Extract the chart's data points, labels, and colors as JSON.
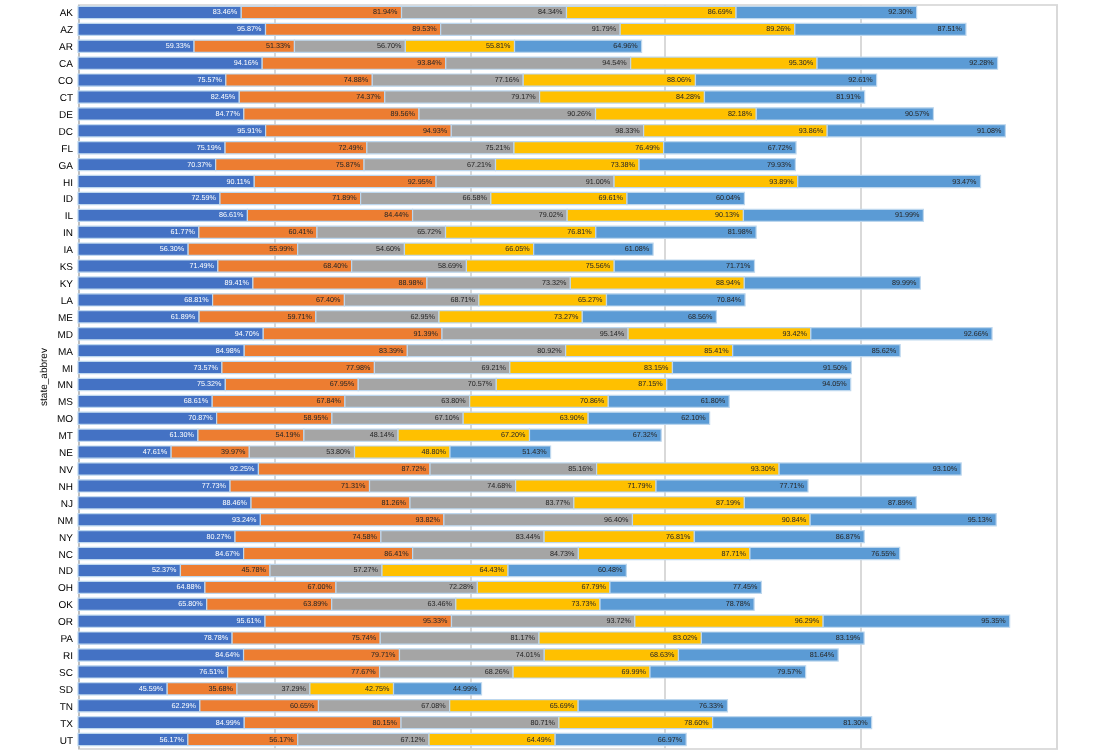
{
  "chart_data": {
    "type": "bar",
    "orientation": "horizontal",
    "stacked": true,
    "ylabel": "state_abbrev",
    "categories": [
      "AK",
      "AZ",
      "AR",
      "CA",
      "CO",
      "CT",
      "DE",
      "DC",
      "FL",
      "GA",
      "HI",
      "ID",
      "IL",
      "IN",
      "IA",
      "KS",
      "KY",
      "LA",
      "ME",
      "MD",
      "MA",
      "MI",
      "MN",
      "MS",
      "MO",
      "MT",
      "NE",
      "NV",
      "NH",
      "NJ",
      "NM",
      "NY",
      "NC",
      "ND",
      "OH",
      "OK",
      "OR",
      "PA",
      "RI",
      "SC",
      "SD",
      "TN",
      "TX",
      "UT"
    ],
    "series": [
      {
        "color": "#4472c4",
        "values": [
          83.46,
          95.87,
          59.33,
          94.16,
          75.57,
          82.45,
          84.77,
          95.91,
          75.19,
          70.37,
          90.11,
          72.59,
          86.61,
          61.77,
          56.3,
          71.49,
          89.41,
          68.81,
          61.89,
          94.7,
          84.98,
          73.57,
          75.32,
          68.61,
          70.87,
          61.3,
          47.61,
          92.25,
          77.73,
          88.46,
          93.24,
          80.27,
          84.67,
          52.37,
          64.88,
          65.8,
          95.61,
          78.78,
          84.64,
          76.51,
          45.59,
          62.29,
          84.99,
          56.17
        ],
        "value_labels": [
          "83.46%",
          "95.87%",
          "59.33%",
          "94.16%",
          "75.57%",
          "82.45%",
          "84.77%",
          "95.91%",
          "75.19%",
          "70.37%",
          "90.11%",
          "72.59%",
          "86.61%",
          "61.77%",
          "56.30%",
          "71.49%",
          "89.41%",
          "68.81%",
          "61.89%",
          "94.70%",
          "84.98%",
          "73.57%",
          "75.32%",
          "68.61%",
          "70.87%",
          "61.30%",
          "47.61%",
          "92.25%",
          "77.73%",
          "88.46%",
          "93.24%",
          "80.27%",
          "84.67%",
          "52.37%",
          "64.88%",
          "65.80%",
          "95.61%",
          "78.78%",
          "84.64%",
          "76.51%",
          "45.59%",
          "62.29%",
          "84.99%",
          "56.17%"
        ]
      },
      {
        "color": "#ed7d31",
        "values": [
          81.94,
          89.53,
          51.33,
          93.84,
          74.88,
          74.37,
          89.56,
          94.93,
          72.49,
          75.87,
          92.95,
          71.89,
          84.44,
          60.41,
          55.99,
          68.4,
          88.98,
          67.4,
          59.71,
          91.39,
          83.39,
          77.98,
          67.95,
          67.84,
          58.95,
          54.19,
          39.97,
          87.72,
          71.31,
          81.26,
          93.82,
          74.58,
          86.41,
          45.78,
          67.0,
          63.89,
          95.33,
          75.74,
          79.71,
          77.67,
          35.68,
          60.65,
          80.15,
          56.17
        ],
        "value_labels": [
          "81.94%",
          "89.53%",
          "51.33%",
          "93.84%",
          "74.88%",
          "74.37%",
          "89.56%",
          "94.93%",
          "72.49%",
          "75.87%",
          "92.95%",
          "71.89%",
          "84.44%",
          "60.41%",
          "55.99%",
          "68.40%",
          "88.98%",
          "67.40%",
          "59.71%",
          "91.39%",
          "83.39%",
          "77.98%",
          "67.95%",
          "67.84%",
          "58.95%",
          "54.19%",
          "39.97%",
          "87.72%",
          "71.31%",
          "81.26%",
          "93.82%",
          "74.58%",
          "86.41%",
          "45.78%",
          "67.00%",
          "63.89%",
          "95.33%",
          "75.74%",
          "79.71%",
          "77.67%",
          "35.68%",
          "60.65%",
          "80.15%",
          "56.17%"
        ]
      },
      {
        "color": "#a5a5a5",
        "values": [
          84.34,
          91.79,
          56.7,
          94.54,
          77.16,
          79.17,
          90.26,
          98.33,
          75.21,
          67.21,
          91.0,
          66.58,
          79.02,
          65.72,
          54.6,
          58.69,
          73.32,
          68.71,
          62.95,
          95.14,
          80.92,
          69.21,
          70.57,
          63.8,
          67.1,
          48.14,
          53.8,
          85.16,
          74.68,
          83.77,
          96.4,
          83.44,
          84.73,
          57.27,
          72.28,
          63.46,
          93.72,
          81.17,
          74.01,
          68.26,
          37.29,
          67.08,
          80.71,
          67.12
        ],
        "value_labels": [
          "84.34%",
          "91.79%",
          "56.70%",
          "94.54%",
          "77.16%",
          "79.17%",
          "90.26%",
          "98.33%",
          "75.21%",
          "67.21%",
          "91.00%",
          "66.58%",
          "79.02%",
          "65.72%",
          "54.60%",
          "58.69%",
          "73.32%",
          "68.71%",
          "62.95%",
          "95.14%",
          "80.92%",
          "69.21%",
          "70.57%",
          "63.80%",
          "67.10%",
          "48.14%",
          "53.80%",
          "85.16%",
          "74.68%",
          "83.77%",
          "96.40%",
          "83.44%",
          "84.73%",
          "57.27%",
          "72.28%",
          "63.46%",
          "93.72%",
          "81.17%",
          "74.01%",
          "68.26%",
          "37.29%",
          "67.08%",
          "80.71%",
          "67.12%"
        ]
      },
      {
        "color": "#ffc000",
        "values": [
          86.69,
          89.26,
          55.81,
          95.3,
          88.06,
          84.28,
          82.18,
          93.86,
          76.49,
          73.38,
          93.89,
          69.61,
          90.13,
          76.81,
          66.05,
          75.56,
          88.94,
          65.27,
          73.27,
          93.42,
          85.41,
          83.15,
          87.15,
          70.86,
          63.9,
          67.2,
          48.8,
          93.3,
          71.79,
          87.19,
          90.84,
          76.81,
          87.71,
          64.43,
          67.79,
          73.73,
          96.29,
          83.02,
          68.63,
          69.99,
          42.75,
          65.69,
          78.6,
          64.49
        ],
        "value_labels": [
          "86.69%",
          "89.26%",
          "55.81%",
          "95.30%",
          "88.06%",
          "84.28%",
          "82.18%",
          "93.86%",
          "76.49%",
          "73.38%",
          "93.89%",
          "69.61%",
          "90.13%",
          "76.81%",
          "66.05%",
          "75.56%",
          "88.94%",
          "65.27%",
          "73.27%",
          "93.42%",
          "85.41%",
          "83.15%",
          "87.15%",
          "70.86%",
          "63.90%",
          "67.20%",
          "48.80%",
          "93.30%",
          "71.79%",
          "87.19%",
          "90.84%",
          "76.81%",
          "87.71%",
          "64.43%",
          "67.79%",
          "73.73%",
          "96.29%",
          "83.02%",
          "68.63%",
          "69.99%",
          "42.75%",
          "65.69%",
          "78.60%",
          "64.49%"
        ]
      },
      {
        "color": "#5b9bd5",
        "values": [
          92.3,
          87.51,
          64.96,
          92.28,
          92.61,
          81.91,
          90.57,
          91.08,
          67.72,
          79.93,
          93.47,
          60.04,
          91.99,
          81.98,
          61.08,
          71.71,
          89.99,
          70.84,
          68.56,
          92.66,
          85.62,
          91.5,
          94.05,
          61.8,
          62.1,
          67.32,
          51.43,
          93.1,
          77.71,
          87.89,
          95.13,
          86.87,
          76.55,
          60.48,
          77.45,
          78.78,
          95.35,
          83.19,
          81.64,
          79.57,
          44.99,
          76.33,
          81.3,
          66.97
        ],
        "value_labels": [
          "92.30%",
          "87.51%",
          "64.96%",
          "92.28%",
          "92.61%",
          "81.91%",
          "90.57%",
          "91.08%",
          "67.72%",
          "79.93%",
          "93.47%",
          "60.04%",
          "91.99%",
          "81.98%",
          "61.08%",
          "71.71%",
          "89.99%",
          "70.84%",
          "68.56%",
          "92.66%",
          "85.62%",
          "91.50%",
          "94.05%",
          "61.80%",
          "62.10%",
          "67.32%",
          "51.43%",
          "93.10%",
          "77.71%",
          "87.89%",
          "95.13%",
          "86.87%",
          "76.55%",
          "60.48%",
          "77.45%",
          "78.78%",
          "95.35%",
          "83.19%",
          "81.64%",
          "79.57%",
          "44.99%",
          "76.33%",
          "81.30%",
          "66.97%"
        ]
      }
    ],
    "xlim": [
      0,
      500
    ],
    "xticks": [
      {
        "value": 0,
        "label": null
      },
      {
        "value": 100,
        "label": null
      },
      {
        "value": 200,
        "label": null
      },
      {
        "value": 300,
        "label": null
      },
      {
        "value": 400,
        "label": null
      },
      {
        "value": 500,
        "label": null
      }
    ],
    "tick_labels": "y",
    "grid": "x",
    "legend": false
  }
}
